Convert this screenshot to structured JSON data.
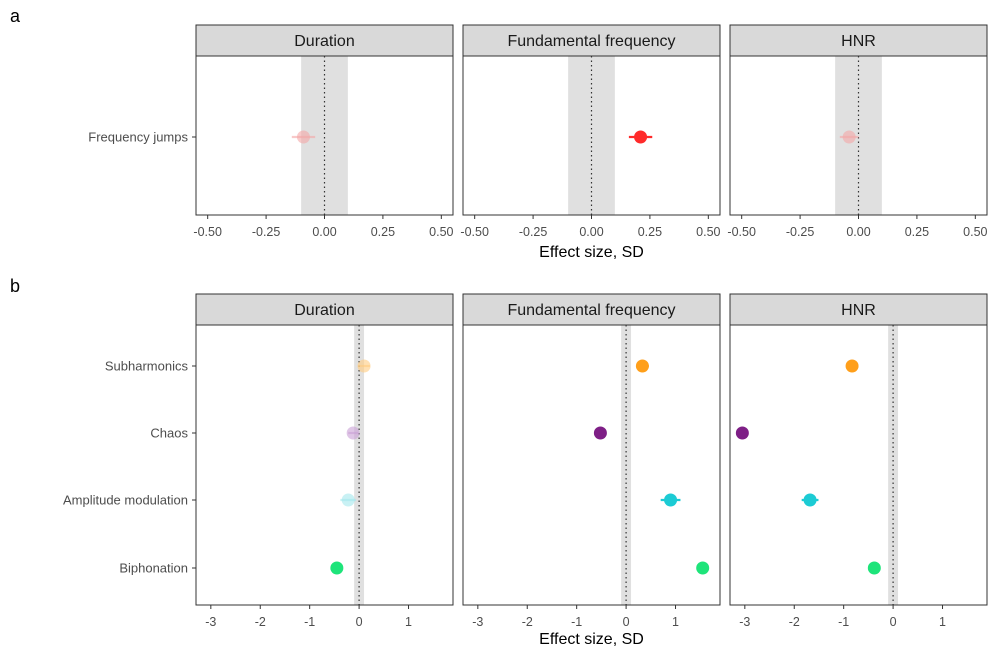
{
  "chart_data": [
    {
      "type": "scatter",
      "panel_label": "a",
      "xlabel": "Effect size, SD",
      "xlim": [
        -0.55,
        0.55
      ],
      "xticks": [
        -0.5,
        -0.25,
        0,
        0.25,
        0.5
      ],
      "xtick_labels": [
        "-0.50",
        "-0.25",
        "0.00",
        "0.25",
        "0.50"
      ],
      "rope": [
        -0.1,
        0.1
      ],
      "grid": false,
      "categories": [
        "Frequency jumps"
      ],
      "facets": [
        {
          "title": "Duration",
          "points": [
            {
              "category": "Frequency jumps",
              "value": -0.09,
              "lower": -0.14,
              "upper": -0.04,
              "color": "#f4a6a6",
              "alpha": 0.6
            }
          ]
        },
        {
          "title": "Fundamental frequency",
          "points": [
            {
              "category": "Frequency jumps",
              "value": 0.21,
              "lower": 0.16,
              "upper": 0.26,
              "color": "#ff2a2a",
              "alpha": 1
            }
          ]
        },
        {
          "title": "HNR",
          "points": [
            {
              "category": "Frequency jumps",
              "value": -0.04,
              "lower": -0.08,
              "upper": 0.0,
              "color": "#f4a6a6",
              "alpha": 0.6
            }
          ]
        }
      ]
    },
    {
      "type": "scatter",
      "panel_label": "b",
      "xlabel": "Effect size, SD",
      "xlim": [
        -3.3,
        1.9
      ],
      "xticks": [
        -3,
        -2,
        -1,
        0,
        1
      ],
      "xtick_labels": [
        "-3",
        "-2",
        "-1",
        "0",
        "1"
      ],
      "rope": [
        -0.1,
        0.1
      ],
      "grid": false,
      "categories": [
        "Subharmonics",
        "Chaos",
        "Amplitude modulation",
        "Biphonation"
      ],
      "facets": [
        {
          "title": "Duration",
          "points": [
            {
              "category": "Subharmonics",
              "value": 0.1,
              "lower": -0.02,
              "upper": 0.22,
              "color": "#ffcc80",
              "alpha": 0.6
            },
            {
              "category": "Chaos",
              "value": -0.12,
              "lower": -0.22,
              "upper": -0.02,
              "color": "#c9a0d6",
              "alpha": 0.6
            },
            {
              "category": "Amplitude modulation",
              "value": -0.22,
              "lower": -0.38,
              "upper": -0.06,
              "color": "#a5e8ec",
              "alpha": 0.6
            },
            {
              "category": "Biphonation",
              "value": -0.45,
              "lower": -0.55,
              "upper": -0.35,
              "color": "#1ee47a",
              "alpha": 1
            }
          ]
        },
        {
          "title": "Fundamental frequency",
          "points": [
            {
              "category": "Subharmonics",
              "value": 0.33,
              "lower": 0.2,
              "upper": 0.46,
              "color": "#ff9f1a",
              "alpha": 1
            },
            {
              "category": "Chaos",
              "value": -0.52,
              "lower": -0.62,
              "upper": -0.42,
              "color": "#7e1f86",
              "alpha": 1
            },
            {
              "category": "Amplitude modulation",
              "value": 0.9,
              "lower": 0.7,
              "upper": 1.1,
              "color": "#1ccbd4",
              "alpha": 1
            },
            {
              "category": "Biphonation",
              "value": 1.55,
              "lower": 1.45,
              "upper": 1.65,
              "color": "#1ee47a",
              "alpha": 1
            }
          ]
        },
        {
          "title": "HNR",
          "points": [
            {
              "category": "Subharmonics",
              "value": -0.83,
              "lower": -0.93,
              "upper": -0.73,
              "color": "#ff9f1a",
              "alpha": 1
            },
            {
              "category": "Chaos",
              "value": -3.05,
              "lower": -3.15,
              "upper": -2.95,
              "color": "#7e1f86",
              "alpha": 1
            },
            {
              "category": "Amplitude modulation",
              "value": -1.68,
              "lower": -1.85,
              "upper": -1.51,
              "color": "#1ccbd4",
              "alpha": 1
            },
            {
              "category": "Biphonation",
              "value": -0.38,
              "lower": -0.48,
              "upper": -0.28,
              "color": "#1ee47a",
              "alpha": 1
            }
          ]
        }
      ]
    }
  ]
}
